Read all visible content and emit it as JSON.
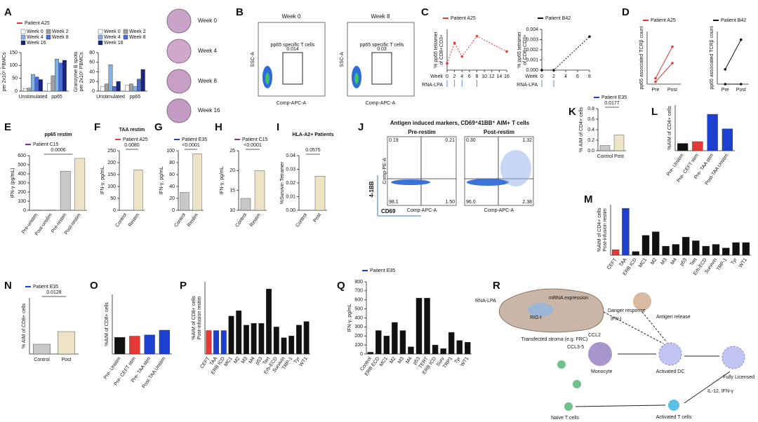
{
  "panel_letters": [
    "A",
    "B",
    "C",
    "D",
    "E",
    "F",
    "G",
    "H",
    "I",
    "J",
    "K",
    "L",
    "M",
    "N",
    "O",
    "P",
    "Q",
    "R"
  ],
  "images_a": [
    "Week 0",
    "Week 4",
    "Week 8",
    "Week 16"
  ],
  "flow_b": {
    "plots": [
      {
        "title": "Week 0",
        "gate": "pp65 specific T cells",
        "value": "0.014"
      },
      {
        "title": "Week 8",
        "gate": "pp65 specific T cells",
        "value": "0.03"
      }
    ],
    "x_axis": "Comp-APC-A",
    "y_axis": "SSC-A"
  },
  "flow_j": {
    "title": "Antigen induced markers, CD69⁺41BB⁺ AIM+ T cells",
    "plots": [
      {
        "title": "Pre-restim",
        "quadrants": [
          "0.19",
          "0.21",
          "98.1",
          "1.50"
        ]
      },
      {
        "title": "Post-restim",
        "quadrants": [
          "0.30",
          "1.32",
          "96.0",
          "2.38"
        ]
      }
    ],
    "y_marker": "4-1BB",
    "x_marker": "CD69",
    "x_axis": "Comp-APC-A",
    "y_axis": "Comp-PE-A"
  },
  "diagram": {
    "nodes": [
      "RNA-LPA",
      "mRNA expression",
      "RIG-I",
      "Transfected stroma (e.g. FRC)",
      "Danger response",
      "IFN-I",
      "Antigen release",
      "CCL2",
      "CCL3-5",
      "Monocyte",
      "Activated DC",
      "Fully Licensed",
      "IL-12, IFN-γ",
      "Naive T cells",
      "Activated T cells"
    ]
  },
  "chart_data": [
    {
      "type": "bar",
      "legend": {
        "name": "Patient A25",
        "color": "#e53935"
      },
      "ylabel": [
        "IFN-γ spots",
        "per 2x10⁵ PBMCs"
      ],
      "categories": [
        "Unstimulated",
        "pp65"
      ],
      "series": [
        {
          "name": "Week 0",
          "color": "#ffffff",
          "values": [
            10,
            30
          ]
        },
        {
          "name": "Week 2",
          "color": "#a0a0a0",
          "values": [
            12,
            60
          ]
        },
        {
          "name": "Week 4",
          "color": "#7fb2e0",
          "values": [
            65,
            125
          ]
        },
        {
          "name": "Week 8",
          "color": "#4a6bd1",
          "values": [
            55,
            110
          ]
        },
        {
          "name": "Week 16",
          "color": "#1a237e",
          "values": [
            45,
            120
          ]
        }
      ],
      "ylim": [
        0,
        150
      ],
      "yticks": [
        0,
        50,
        100,
        150
      ]
    },
    {
      "type": "bar",
      "ylabel": [
        "Granzyme B spots",
        "per 2x10⁵ PBMCs"
      ],
      "categories": [
        "Unstimulated",
        "pp65"
      ],
      "series": [
        {
          "name": "Week 0",
          "color": "#ffffff",
          "values": [
            10,
            12
          ]
        },
        {
          "name": "Week 2",
          "color": "#a0a0a0",
          "values": [
            15,
            15
          ]
        },
        {
          "name": "Week 4",
          "color": "#7fb2e0",
          "values": [
            55,
            10
          ]
        },
        {
          "name": "Week 8",
          "color": "#4a6bd1",
          "values": [
            10,
            25
          ]
        },
        {
          "name": "Week 16",
          "color": "#1a237e",
          "values": [
            20,
            45
          ]
        }
      ],
      "ylim": [
        0,
        80
      ],
      "yticks": [
        0,
        20,
        40,
        60,
        80
      ]
    },
    {
      "type": "line",
      "legend": {
        "name": "Patient A25",
        "color": "#e53935"
      },
      "ylabel": [
        "% pp65 tetramer",
        "of CD8+CD3+"
      ],
      "xlabel": "Week",
      "injection_label": "RNA-LPA",
      "injection_weeks": [
        0,
        2,
        4,
        8
      ],
      "x": [
        0,
        2,
        4,
        8,
        16
      ],
      "series": [
        {
          "color": "#e53935",
          "values": [
            0.02,
            0.08,
            0.04,
            0.1,
            0.055
          ]
        }
      ],
      "xlim": [
        0,
        16
      ],
      "xticks": [
        0,
        2,
        4,
        6,
        8,
        10,
        12,
        14,
        16
      ],
      "ylim": [
        0,
        0.12
      ],
      "line_style": "dotted"
    },
    {
      "type": "line",
      "legend": {
        "name": "Patient B42",
        "color": "#111111"
      },
      "ylabel": [
        "% pp65 tetramer",
        "of CD8+CD3+"
      ],
      "xlabel": "Week",
      "injection_label": "RNA-LPA",
      "injection_weeks": [
        0,
        2
      ],
      "x": [
        0,
        2,
        8
      ],
      "series": [
        {
          "color": "#111111",
          "values": [
            0,
            0,
            0.0033
          ]
        }
      ],
      "xlim": [
        0,
        8
      ],
      "xticks": [
        0,
        2,
        4,
        6,
        8
      ],
      "ylim": [
        0,
        0.004
      ],
      "yticks": [
        {
          "value": 0,
          "label": "0.000"
        },
        {
          "value": 0.001,
          "label": "0.001"
        },
        {
          "value": 0.002,
          "label": "0.002"
        },
        {
          "value": 0.003,
          "label": "0.003"
        },
        {
          "value": 0.004,
          "label": "0.004"
        }
      ],
      "line_style": "dotted"
    },
    {
      "type": "line",
      "legend": {
        "name": "Patient A25",
        "color": "#e53935"
      },
      "ylabel": [
        "pp65 associated TCRβ count"
      ],
      "categories": [
        "Pre",
        "Post"
      ],
      "series": [
        {
          "color": "#e53935",
          "values": [
            5,
            32
          ]
        },
        {
          "color": "#e53935",
          "values": [
            2,
            18
          ]
        }
      ],
      "ylim": [
        0,
        45
      ]
    },
    {
      "type": "line",
      "legend": {
        "name": "Patient B42",
        "color": "#111111"
      },
      "ylabel": [
        "pp65 associated TCRβ count"
      ],
      "categories": [
        "Pre",
        "Post"
      ],
      "series": [
        {
          "color": "#111111",
          "values": [
            45,
            135
          ]
        },
        {
          "color": "#111111",
          "values": [
            0,
            0
          ]
        }
      ],
      "ylim": [
        0,
        160
      ]
    },
    {
      "type": "bar",
      "title": "pp65 restim",
      "legend": {
        "name": "Patient C15",
        "color": "#8e24aa"
      },
      "ylabel": [
        "IFN-γ (pg/mL)"
      ],
      "annotation": "0.0006",
      "categories": [
        "Pre-unstim",
        "Post-unstim",
        "Pre-restim",
        "Post-restim"
      ],
      "values": [
        2,
        2,
        430,
        570
      ],
      "colors": [
        "#c8c8c8",
        "#ece4c4",
        "#c8c8c8",
        "#ece4c4"
      ],
      "ylim": [
        0,
        600
      ],
      "yticks": [
        0,
        100,
        200,
        300,
        400,
        500,
        600
      ]
    },
    {
      "type": "bar",
      "title": "TAA restim",
      "legend": {
        "name": "Patient A25",
        "color": "#e53935"
      },
      "ylabel": [
        "IFN-γ, pg/mL"
      ],
      "annotation": "0.0080",
      "categories": [
        "Control",
        "Restim"
      ],
      "values": [
        0,
        170
      ],
      "colors": [
        "#c8c8c8",
        "#ece4c4"
      ],
      "ylim": [
        0,
        250
      ],
      "yticks": [
        0,
        50,
        100,
        150,
        200,
        250
      ]
    },
    {
      "type": "bar",
      "legend": {
        "name": "Patient E35",
        "color": "#1e40d0"
      },
      "ylabel": [
        "IFN-γ, pg/mL"
      ],
      "annotation": "<0.0001",
      "categories": [
        "Control",
        "Restim"
      ],
      "values": [
        30,
        95
      ],
      "colors": [
        "#c8c8c8",
        "#ece4c4"
      ],
      "ylim": [
        0,
        100
      ],
      "yticks": [
        0,
        20,
        40,
        60,
        80,
        100
      ]
    },
    {
      "type": "bar",
      "legend": {
        "name": "Patient C15",
        "color": "#8e24aa"
      },
      "ylabel": [
        "IFN-γ, pg/mL"
      ],
      "annotation": "<0.0001",
      "categories": [
        "Control",
        "Restim"
      ],
      "values": [
        13,
        20
      ],
      "colors": [
        "#c8c8c8",
        "#ece4c4"
      ],
      "ylim": [
        10,
        25
      ],
      "yticks": [
        10,
        15,
        20,
        25
      ]
    },
    {
      "type": "bar",
      "title": "HLA-A2+ Patients",
      "ylabel": [
        "%Survivin Tetramer"
      ],
      "annotation": "0.0575",
      "categories": [
        "Control",
        "Post"
      ],
      "values": [
        0,
        0.025
      ],
      "colors": [
        "#c8c8c8",
        "#ece4c4"
      ],
      "ylim": [
        0,
        0.04
      ],
      "yticks": [
        {
          "value": 0,
          "label": "0.00"
        },
        {
          "value": 0.01,
          "label": "0.01"
        },
        {
          "value": 0.02,
          "label": "0.02"
        },
        {
          "value": 0.03,
          "label": "0.03"
        },
        {
          "value": 0.04,
          "label": "0.04"
        }
      ]
    },
    {
      "type": "bar",
      "legend": {
        "name": "Patient E35",
        "color": "#1e40d0"
      },
      "ylabel": [
        "% AIM of CD4+ cells"
      ],
      "annotation": "0.0177",
      "categories": [
        "Control",
        "Post"
      ],
      "values": [
        0.1,
        0.3
      ],
      "colors": [
        "#c8c8c8",
        "#ece4c4"
      ],
      "ylim": [
        0,
        0.8
      ],
      "yticks": [
        {
          "value": 0,
          "label": "0.0"
        },
        {
          "value": 0.2,
          "label": "0.2"
        },
        {
          "value": 0.4,
          "label": "0.4"
        },
        {
          "value": 0.6,
          "label": "0.6"
        },
        {
          "value": 0.8,
          "label": "0.8"
        }
      ]
    },
    {
      "type": "bar",
      "ylabel": [
        "%AIM of CD4+ cells"
      ],
      "categories": [
        "Pre- Unstim",
        "Pre- CEFT stim",
        "Pre- TAA stim",
        "Post-TAA Unstim"
      ],
      "values": [
        0.04,
        0.05,
        0.2,
        0.12
      ],
      "colors": [
        "#111111",
        "#e53935",
        "#1e40d0",
        "#1e40d0"
      ],
      "ylim": [
        0,
        0.25
      ]
    },
    {
      "type": "bar",
      "ylabel": [
        "%AIM of CD4+ cells",
        "Post-infusion restim"
      ],
      "categories": [
        "CEFT",
        "TAA",
        "ERB ICD",
        "MC1",
        "M2",
        "M3",
        "M4",
        "p53",
        "Tert",
        "Erb-ECD",
        "Survivin",
        "TRP-1",
        "Tyr",
        "WT1"
      ],
      "values": [
        0.15,
        1.3,
        0.1,
        0.55,
        0.65,
        0.25,
        0.3,
        0.5,
        0.4,
        0.25,
        0.3,
        0.2,
        0.35,
        0.35
      ],
      "colors": [
        "#e53935",
        "#1e40d0",
        "#111111",
        "#111111",
        "#111111",
        "#111111",
        "#111111",
        "#111111",
        "#111111",
        "#111111",
        "#111111",
        "#111111",
        "#111111",
        "#111111"
      ],
      "ylim": [
        0,
        1.4
      ]
    },
    {
      "type": "bar",
      "legend": {
        "name": "Patient E35",
        "color": "#1e40d0"
      },
      "ylabel": [
        "% AIM of CD8+ cells"
      ],
      "annotation": "0.0128",
      "categories": [
        "Control",
        "Post"
      ],
      "values": [
        0.35,
        0.8
      ],
      "colors": [
        "#c8c8c8",
        "#ece4c4"
      ],
      "ylim": [
        0,
        2
      ]
    },
    {
      "type": "bar",
      "ylabel": [
        "%AIM of CD8+ cells"
      ],
      "categories": [
        "Pre- Unstim",
        "Pre- CEFT stim",
        "Pre- TAA stim",
        "Post-TAA Unstim"
      ],
      "values": [
        0.28,
        0.3,
        0.32,
        0.4
      ],
      "colors": [
        "#111111",
        "#e53935",
        "#1e40d0",
        "#1e40d0"
      ],
      "ylim": [
        0,
        1
      ]
    },
    {
      "type": "bar",
      "ylabel": [
        "%AIM of CD8+ cells",
        "Post-infusion restim"
      ],
      "categories": [
        "CEFT",
        "TAA",
        "ERB ICD",
        "MC1",
        "M2",
        "M3",
        "M4",
        "p53",
        "Tert",
        "Erb-ECD",
        "Survivin",
        "TRP-1",
        "Tyr",
        "WT1"
      ],
      "values": [
        0.65,
        0.65,
        0.65,
        1.05,
        1.2,
        0.8,
        0.85,
        0.85,
        1.8,
        0.75,
        0.45,
        0.5,
        0.8,
        0.9
      ],
      "colors": [
        "#e53935",
        "#1e40d0",
        "#1e40d0",
        "#111111",
        "#111111",
        "#111111",
        "#111111",
        "#111111",
        "#111111",
        "#111111",
        "#111111",
        "#111111",
        "#111111",
        "#111111"
      ],
      "ylim": [
        0,
        2
      ]
    },
    {
      "type": "bar",
      "legend": {
        "name": "Patient E35",
        "color": "#1e40d0"
      },
      "ylabel": [
        "IFN-γ, pg/mL"
      ],
      "categories": [
        "Control",
        "ERB ECD",
        "MC1",
        "M2",
        "M3",
        "M4",
        "p53",
        "TERT",
        "ERB ICD",
        "Surv",
        "TRP1",
        "Tyr",
        "WT1"
      ],
      "values": [
        20,
        260,
        200,
        350,
        260,
        80,
        620,
        620,
        100,
        60,
        240,
        150,
        130
      ],
      "color": "#111111",
      "ylim": [
        0,
        800
      ],
      "yticks": [
        0,
        100,
        200,
        300,
        400,
        500,
        600,
        700,
        800
      ]
    }
  ]
}
